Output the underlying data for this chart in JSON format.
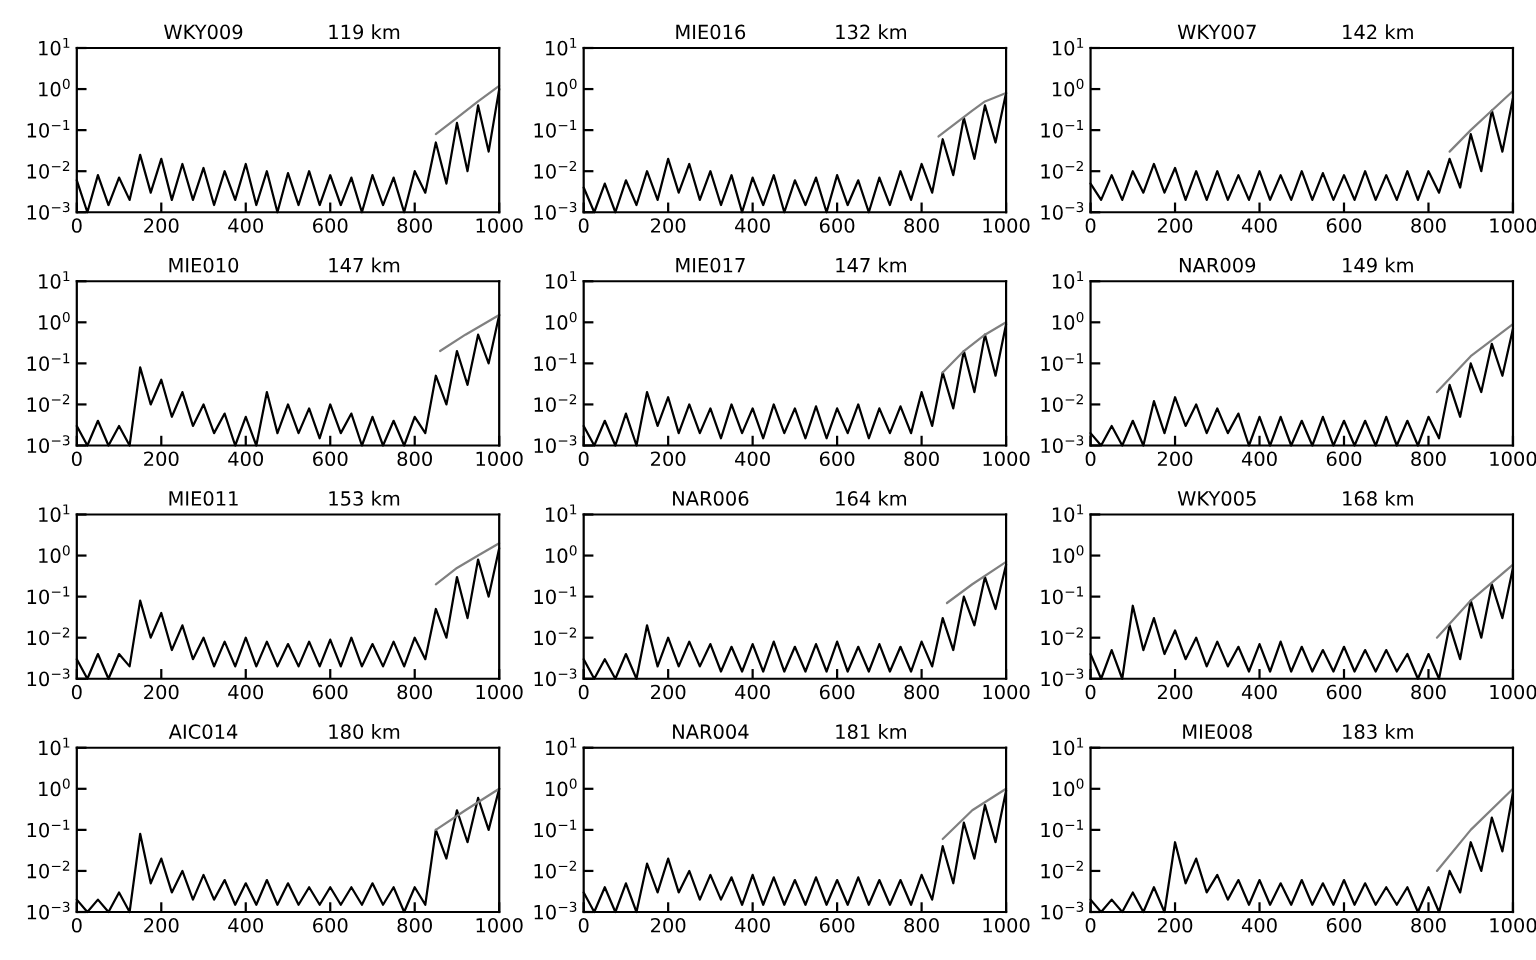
{
  "chart_data": [
    {
      "type": "line",
      "title": "WKY009",
      "subtitle": "119 km",
      "log": "y",
      "xlim": [
        0,
        1000
      ],
      "xticks": [
        0,
        200,
        400,
        600,
        800,
        1000
      ],
      "ylim": [
        0.001,
        10
      ],
      "yticks": [
        {
          "value": 0.001,
          "label": "10$^{−3}$"
        },
        {
          "value": 0.01,
          "label": "10$^{−2}$"
        },
        {
          "value": 0.1,
          "label": "10$^{−1}$"
        },
        {
          "value": 1,
          "label": "10$^{0}$"
        },
        {
          "value": 10,
          "label": "10$^{1}$"
        }
      ],
      "series": [
        {
          "color": "#000000",
          "x": [
            0,
            25,
            50,
            75,
            100,
            125,
            150,
            175,
            200,
            225,
            250,
            275,
            300,
            325,
            350,
            375,
            400,
            425,
            450,
            475,
            500,
            525,
            550,
            575,
            600,
            625,
            650,
            675,
            700,
            725,
            750,
            775,
            800,
            825,
            850,
            875,
            900,
            925,
            950,
            975,
            1000
          ],
          "values": [
            0.006,
            0.001,
            0.008,
            0.0015,
            0.007,
            0.002,
            0.025,
            0.003,
            0.02,
            0.002,
            0.015,
            0.002,
            0.012,
            0.0015,
            0.01,
            0.002,
            0.015,
            0.0015,
            0.01,
            0.001,
            0.009,
            0.0015,
            0.01,
            0.0015,
            0.008,
            0.0015,
            0.007,
            0.001,
            0.008,
            0.0015,
            0.007,
            0.001,
            0.01,
            0.003,
            0.05,
            0.005,
            0.15,
            0.01,
            0.4,
            0.03,
            1.0
          ]
        },
        {
          "color": "#808080",
          "x": [
            850,
            900,
            950,
            1000
          ],
          "values": [
            0.08,
            0.2,
            0.5,
            1.2
          ]
        }
      ]
    },
    {
      "type": "line",
      "title": "MIE016",
      "subtitle": "132 km",
      "log": "y",
      "xlim": [
        0,
        1000
      ],
      "xticks": [
        0,
        200,
        400,
        600,
        800,
        1000
      ],
      "ylim": [
        0.001,
        10
      ],
      "yticks": [
        {
          "value": 0.001,
          "label": "10$^{−3}$"
        },
        {
          "value": 0.01,
          "label": "10$^{−2}$"
        },
        {
          "value": 0.1,
          "label": "10$^{−1}$"
        },
        {
          "value": 1,
          "label": "10$^{0}$"
        },
        {
          "value": 10,
          "label": "10$^{1}$"
        }
      ],
      "series": [
        {
          "color": "#000000",
          "x": [
            0,
            25,
            50,
            75,
            100,
            125,
            150,
            175,
            200,
            225,
            250,
            275,
            300,
            325,
            350,
            375,
            400,
            425,
            450,
            475,
            500,
            525,
            550,
            575,
            600,
            625,
            650,
            675,
            700,
            725,
            750,
            775,
            800,
            825,
            850,
            875,
            900,
            925,
            950,
            975,
            1000
          ],
          "values": [
            0.004,
            0.001,
            0.005,
            0.001,
            0.006,
            0.0015,
            0.01,
            0.002,
            0.02,
            0.003,
            0.015,
            0.002,
            0.01,
            0.0015,
            0.008,
            0.001,
            0.007,
            0.0015,
            0.008,
            0.001,
            0.006,
            0.0015,
            0.007,
            0.001,
            0.008,
            0.0015,
            0.006,
            0.001,
            0.007,
            0.0015,
            0.01,
            0.002,
            0.015,
            0.003,
            0.06,
            0.008,
            0.2,
            0.02,
            0.4,
            0.05,
            0.8
          ]
        },
        {
          "color": "#808080",
          "x": [
            840,
            920,
            950,
            1000
          ],
          "values": [
            0.07,
            0.3,
            0.5,
            0.8
          ]
        }
      ]
    },
    {
      "type": "line",
      "title": "WKY007",
      "subtitle": "142 km",
      "log": "y",
      "xlim": [
        0,
        1000
      ],
      "xticks": [
        0,
        200,
        400,
        600,
        800,
        1000
      ],
      "ylim": [
        0.001,
        10
      ],
      "yticks": [
        {
          "value": 0.001,
          "label": "10$^{−3}$"
        },
        {
          "value": 0.01,
          "label": "10$^{−2}$"
        },
        {
          "value": 0.1,
          "label": "10$^{−1}$"
        },
        {
          "value": 1,
          "label": "10$^{0}$"
        },
        {
          "value": 10,
          "label": "10$^{1}$"
        }
      ],
      "series": [
        {
          "color": "#000000",
          "x": [
            0,
            25,
            50,
            75,
            100,
            125,
            150,
            175,
            200,
            225,
            250,
            275,
            300,
            325,
            350,
            375,
            400,
            425,
            450,
            475,
            500,
            525,
            550,
            575,
            600,
            625,
            650,
            675,
            700,
            725,
            750,
            775,
            800,
            825,
            850,
            875,
            900,
            925,
            950,
            975,
            1000
          ],
          "values": [
            0.005,
            0.002,
            0.008,
            0.002,
            0.01,
            0.003,
            0.015,
            0.003,
            0.012,
            0.002,
            0.01,
            0.002,
            0.01,
            0.002,
            0.008,
            0.002,
            0.01,
            0.002,
            0.008,
            0.002,
            0.01,
            0.002,
            0.009,
            0.002,
            0.008,
            0.002,
            0.01,
            0.002,
            0.008,
            0.002,
            0.01,
            0.002,
            0.01,
            0.003,
            0.02,
            0.004,
            0.08,
            0.01,
            0.3,
            0.03,
            0.6
          ]
        },
        {
          "color": "#808080",
          "x": [
            850,
            900,
            950,
            1000
          ],
          "values": [
            0.03,
            0.1,
            0.3,
            0.9
          ]
        }
      ]
    },
    {
      "type": "line",
      "title": "MIE010",
      "subtitle": "147 km",
      "log": "y",
      "xlim": [
        0,
        1000
      ],
      "xticks": [
        0,
        200,
        400,
        600,
        800,
        1000
      ],
      "ylim": [
        0.001,
        10
      ],
      "yticks": [
        {
          "value": 0.001,
          "label": "10$^{−3}$"
        },
        {
          "value": 0.01,
          "label": "10$^{−2}$"
        },
        {
          "value": 0.1,
          "label": "10$^{−1}$"
        },
        {
          "value": 1,
          "label": "10$^{0}$"
        },
        {
          "value": 10,
          "label": "10$^{1}$"
        }
      ],
      "series": [
        {
          "color": "#000000",
          "x": [
            0,
            25,
            50,
            75,
            100,
            125,
            150,
            175,
            200,
            225,
            250,
            275,
            300,
            325,
            350,
            375,
            400,
            425,
            450,
            475,
            500,
            525,
            550,
            575,
            600,
            625,
            650,
            675,
            700,
            725,
            750,
            775,
            800,
            825,
            850,
            875,
            900,
            925,
            950,
            975,
            1000
          ],
          "values": [
            0.003,
            0.001,
            0.004,
            0.001,
            0.003,
            0.001,
            0.08,
            0.01,
            0.04,
            0.005,
            0.02,
            0.003,
            0.01,
            0.002,
            0.006,
            0.001,
            0.005,
            0.001,
            0.02,
            0.002,
            0.01,
            0.002,
            0.008,
            0.0015,
            0.01,
            0.002,
            0.006,
            0.001,
            0.005,
            0.001,
            0.004,
            0.001,
            0.005,
            0.002,
            0.05,
            0.01,
            0.2,
            0.03,
            0.5,
            0.1,
            1.5
          ]
        },
        {
          "color": "#808080",
          "x": [
            860,
            920,
            1000
          ],
          "values": [
            0.2,
            0.5,
            1.5
          ]
        }
      ]
    },
    {
      "type": "line",
      "title": "MIE017",
      "subtitle": "147 km",
      "log": "y",
      "xlim": [
        0,
        1000
      ],
      "xticks": [
        0,
        200,
        400,
        600,
        800,
        1000
      ],
      "ylim": [
        0.001,
        10
      ],
      "yticks": [
        {
          "value": 0.001,
          "label": "10$^{−3}$"
        },
        {
          "value": 0.01,
          "label": "10$^{−2}$"
        },
        {
          "value": 0.1,
          "label": "10$^{−1}$"
        },
        {
          "value": 1,
          "label": "10$^{0}$"
        },
        {
          "value": 10,
          "label": "10$^{1}$"
        }
      ],
      "series": [
        {
          "color": "#000000",
          "x": [
            0,
            25,
            50,
            75,
            100,
            125,
            150,
            175,
            200,
            225,
            250,
            275,
            300,
            325,
            350,
            375,
            400,
            425,
            450,
            475,
            500,
            525,
            550,
            575,
            600,
            625,
            650,
            675,
            700,
            725,
            750,
            775,
            800,
            825,
            850,
            875,
            900,
            925,
            950,
            975,
            1000
          ],
          "values": [
            0.003,
            0.001,
            0.004,
            0.001,
            0.006,
            0.001,
            0.02,
            0.003,
            0.015,
            0.002,
            0.01,
            0.002,
            0.008,
            0.0015,
            0.01,
            0.002,
            0.008,
            0.0015,
            0.01,
            0.002,
            0.008,
            0.0015,
            0.009,
            0.0015,
            0.008,
            0.002,
            0.01,
            0.0015,
            0.008,
            0.002,
            0.009,
            0.002,
            0.02,
            0.003,
            0.06,
            0.008,
            0.2,
            0.02,
            0.5,
            0.05,
            0.9
          ]
        },
        {
          "color": "#808080",
          "x": [
            850,
            900,
            950,
            1000
          ],
          "values": [
            0.06,
            0.2,
            0.5,
            1.0
          ]
        }
      ]
    },
    {
      "type": "line",
      "title": "NAR009",
      "subtitle": "149 km",
      "log": "y",
      "xlim": [
        0,
        1000
      ],
      "xticks": [
        0,
        200,
        400,
        600,
        800,
        1000
      ],
      "ylim": [
        0.001,
        10
      ],
      "yticks": [
        {
          "value": 0.001,
          "label": "10$^{−3}$"
        },
        {
          "value": 0.01,
          "label": "10$^{−2}$"
        },
        {
          "value": 0.1,
          "label": "10$^{−1}$"
        },
        {
          "value": 1,
          "label": "10$^{0}$"
        },
        {
          "value": 10,
          "label": "10$^{1}$"
        }
      ],
      "series": [
        {
          "color": "#000000",
          "x": [
            0,
            25,
            50,
            75,
            100,
            125,
            150,
            175,
            200,
            225,
            250,
            275,
            300,
            325,
            350,
            375,
            400,
            425,
            450,
            475,
            500,
            525,
            550,
            575,
            600,
            625,
            650,
            675,
            700,
            725,
            750,
            775,
            800,
            825,
            850,
            875,
            900,
            925,
            950,
            975,
            1000
          ],
          "values": [
            0.002,
            0.001,
            0.003,
            0.001,
            0.004,
            0.001,
            0.012,
            0.002,
            0.015,
            0.003,
            0.01,
            0.002,
            0.008,
            0.002,
            0.006,
            0.001,
            0.005,
            0.001,
            0.005,
            0.001,
            0.004,
            0.001,
            0.005,
            0.001,
            0.004,
            0.001,
            0.004,
            0.001,
            0.005,
            0.001,
            0.004,
            0.001,
            0.005,
            0.0015,
            0.03,
            0.005,
            0.1,
            0.02,
            0.3,
            0.05,
            0.7
          ]
        },
        {
          "color": "#808080",
          "x": [
            820,
            900,
            1000
          ],
          "values": [
            0.02,
            0.15,
            0.9
          ]
        }
      ]
    },
    {
      "type": "line",
      "title": "MIE011",
      "subtitle": "153 km",
      "log": "y",
      "xlim": [
        0,
        1000
      ],
      "xticks": [
        0,
        200,
        400,
        600,
        800,
        1000
      ],
      "ylim": [
        0.001,
        10
      ],
      "yticks": [
        {
          "value": 0.001,
          "label": "10$^{−3}$"
        },
        {
          "value": 0.01,
          "label": "10$^{−2}$"
        },
        {
          "value": 0.1,
          "label": "10$^{−1}$"
        },
        {
          "value": 1,
          "label": "10$^{0}$"
        },
        {
          "value": 10,
          "label": "10$^{1}$"
        }
      ],
      "series": [
        {
          "color": "#000000",
          "x": [
            0,
            25,
            50,
            75,
            100,
            125,
            150,
            175,
            200,
            225,
            250,
            275,
            300,
            325,
            350,
            375,
            400,
            425,
            450,
            475,
            500,
            525,
            550,
            575,
            600,
            625,
            650,
            675,
            700,
            725,
            750,
            775,
            800,
            825,
            850,
            875,
            900,
            925,
            950,
            975,
            1000
          ],
          "values": [
            0.003,
            0.001,
            0.004,
            0.001,
            0.004,
            0.002,
            0.08,
            0.01,
            0.04,
            0.005,
            0.02,
            0.003,
            0.01,
            0.002,
            0.008,
            0.002,
            0.01,
            0.002,
            0.008,
            0.002,
            0.007,
            0.002,
            0.008,
            0.002,
            0.009,
            0.002,
            0.01,
            0.002,
            0.007,
            0.002,
            0.008,
            0.002,
            0.01,
            0.003,
            0.05,
            0.01,
            0.3,
            0.03,
            0.8,
            0.1,
            1.5
          ]
        },
        {
          "color": "#808080",
          "x": [
            850,
            900,
            950,
            1000
          ],
          "values": [
            0.2,
            0.5,
            1.0,
            2.0
          ]
        }
      ]
    },
    {
      "type": "line",
      "title": "NAR006",
      "subtitle": "164 km",
      "log": "y",
      "xlim": [
        0,
        1000
      ],
      "xticks": [
        0,
        200,
        400,
        600,
        800,
        1000
      ],
      "ylim": [
        0.001,
        10
      ],
      "yticks": [
        {
          "value": 0.001,
          "label": "10$^{−3}$"
        },
        {
          "value": 0.01,
          "label": "10$^{−2}$"
        },
        {
          "value": 0.1,
          "label": "10$^{−1}$"
        },
        {
          "value": 1,
          "label": "10$^{0}$"
        },
        {
          "value": 10,
          "label": "10$^{1}$"
        }
      ],
      "series": [
        {
          "color": "#000000",
          "x": [
            0,
            25,
            50,
            75,
            100,
            125,
            150,
            175,
            200,
            225,
            250,
            275,
            300,
            325,
            350,
            375,
            400,
            425,
            450,
            475,
            500,
            525,
            550,
            575,
            600,
            625,
            650,
            675,
            700,
            725,
            750,
            775,
            800,
            825,
            850,
            875,
            900,
            925,
            950,
            975,
            1000
          ],
          "values": [
            0.003,
            0.001,
            0.003,
            0.001,
            0.004,
            0.001,
            0.02,
            0.002,
            0.01,
            0.002,
            0.008,
            0.002,
            0.007,
            0.0015,
            0.006,
            0.0015,
            0.007,
            0.0015,
            0.008,
            0.0015,
            0.006,
            0.0015,
            0.007,
            0.0015,
            0.008,
            0.0015,
            0.006,
            0.0015,
            0.007,
            0.0015,
            0.006,
            0.0015,
            0.008,
            0.002,
            0.03,
            0.005,
            0.1,
            0.02,
            0.3,
            0.05,
            0.6
          ]
        },
        {
          "color": "#808080",
          "x": [
            860,
            920,
            1000
          ],
          "values": [
            0.07,
            0.2,
            0.7
          ]
        }
      ]
    },
    {
      "type": "line",
      "title": "WKY005",
      "subtitle": "168 km",
      "log": "y",
      "xlim": [
        0,
        1000
      ],
      "xticks": [
        0,
        200,
        400,
        600,
        800,
        1000
      ],
      "ylim": [
        0.001,
        10
      ],
      "yticks": [
        {
          "value": 0.001,
          "label": "10$^{−3}$"
        },
        {
          "value": 0.01,
          "label": "10$^{−2}$"
        },
        {
          "value": 0.1,
          "label": "10$^{−1}$"
        },
        {
          "value": 1,
          "label": "10$^{0}$"
        },
        {
          "value": 10,
          "label": "10$^{1}$"
        }
      ],
      "series": [
        {
          "color": "#000000",
          "x": [
            0,
            25,
            50,
            75,
            100,
            125,
            150,
            175,
            200,
            225,
            250,
            275,
            300,
            325,
            350,
            375,
            400,
            425,
            450,
            475,
            500,
            525,
            550,
            575,
            600,
            625,
            650,
            675,
            700,
            725,
            750,
            775,
            800,
            825,
            850,
            875,
            900,
            925,
            950,
            975,
            1000
          ],
          "values": [
            0.004,
            0.001,
            0.005,
            0.001,
            0.06,
            0.005,
            0.03,
            0.004,
            0.015,
            0.003,
            0.01,
            0.002,
            0.008,
            0.002,
            0.006,
            0.0015,
            0.007,
            0.0015,
            0.008,
            0.0015,
            0.006,
            0.0015,
            0.005,
            0.0015,
            0.006,
            0.0015,
            0.005,
            0.0015,
            0.005,
            0.0015,
            0.004,
            0.001,
            0.004,
            0.001,
            0.02,
            0.003,
            0.08,
            0.01,
            0.2,
            0.03,
            0.5
          ]
        },
        {
          "color": "#808080",
          "x": [
            820,
            900,
            1000
          ],
          "values": [
            0.01,
            0.08,
            0.6
          ]
        }
      ]
    },
    {
      "type": "line",
      "title": "AIC014",
      "subtitle": "180 km",
      "log": "y",
      "xlim": [
        0,
        1000
      ],
      "xticks": [
        0,
        200,
        400,
        600,
        800,
        1000
      ],
      "ylim": [
        0.001,
        10
      ],
      "yticks": [
        {
          "value": 0.001,
          "label": "10$^{−3}$"
        },
        {
          "value": 0.01,
          "label": "10$^{−2}$"
        },
        {
          "value": 0.1,
          "label": "10$^{−1}$"
        },
        {
          "value": 1,
          "label": "10$^{0}$"
        },
        {
          "value": 10,
          "label": "10$^{1}$"
        }
      ],
      "series": [
        {
          "color": "#000000",
          "x": [
            0,
            25,
            50,
            75,
            100,
            125,
            150,
            175,
            200,
            225,
            250,
            275,
            300,
            325,
            350,
            375,
            400,
            425,
            450,
            475,
            500,
            525,
            550,
            575,
            600,
            625,
            650,
            675,
            700,
            725,
            750,
            775,
            800,
            825,
            850,
            875,
            900,
            925,
            950,
            975,
            1000
          ],
          "values": [
            0.002,
            0.001,
            0.002,
            0.001,
            0.003,
            0.001,
            0.08,
            0.005,
            0.02,
            0.003,
            0.01,
            0.002,
            0.008,
            0.002,
            0.006,
            0.0015,
            0.005,
            0.0015,
            0.006,
            0.0015,
            0.005,
            0.0015,
            0.004,
            0.0015,
            0.004,
            0.0015,
            0.004,
            0.0015,
            0.005,
            0.0015,
            0.004,
            0.001,
            0.004,
            0.0015,
            0.1,
            0.02,
            0.3,
            0.05,
            0.6,
            0.1,
            1.0
          ]
        },
        {
          "color": "#808080",
          "x": [
            850,
            920,
            1000
          ],
          "values": [
            0.1,
            0.3,
            1.0
          ]
        }
      ]
    },
    {
      "type": "line",
      "title": "NAR004",
      "subtitle": "181 km",
      "log": "y",
      "xlim": [
        0,
        1000
      ],
      "xticks": [
        0,
        200,
        400,
        600,
        800,
        1000
      ],
      "ylim": [
        0.001,
        10
      ],
      "yticks": [
        {
          "value": 0.001,
          "label": "10$^{−3}$"
        },
        {
          "value": 0.01,
          "label": "10$^{−2}$"
        },
        {
          "value": 0.1,
          "label": "10$^{−1}$"
        },
        {
          "value": 1,
          "label": "10$^{0}$"
        },
        {
          "value": 10,
          "label": "10$^{1}$"
        }
      ],
      "series": [
        {
          "color": "#000000",
          "x": [
            0,
            25,
            50,
            75,
            100,
            125,
            150,
            175,
            200,
            225,
            250,
            275,
            300,
            325,
            350,
            375,
            400,
            425,
            450,
            475,
            500,
            525,
            550,
            575,
            600,
            625,
            650,
            675,
            700,
            725,
            750,
            775,
            800,
            825,
            850,
            875,
            900,
            925,
            950,
            975,
            1000
          ],
          "values": [
            0.003,
            0.001,
            0.004,
            0.001,
            0.005,
            0.001,
            0.015,
            0.003,
            0.02,
            0.003,
            0.01,
            0.002,
            0.008,
            0.002,
            0.007,
            0.0015,
            0.008,
            0.0015,
            0.007,
            0.0015,
            0.006,
            0.0015,
            0.007,
            0.0015,
            0.006,
            0.0015,
            0.007,
            0.0015,
            0.006,
            0.0015,
            0.006,
            0.0015,
            0.008,
            0.002,
            0.04,
            0.005,
            0.15,
            0.02,
            0.4,
            0.05,
            0.9
          ]
        },
        {
          "color": "#808080",
          "x": [
            850,
            920,
            1000
          ],
          "values": [
            0.06,
            0.3,
            1.0
          ]
        }
      ]
    },
    {
      "type": "line",
      "title": "MIE008",
      "subtitle": "183 km",
      "log": "y",
      "xlim": [
        0,
        1000
      ],
      "xticks": [
        0,
        200,
        400,
        600,
        800,
        1000
      ],
      "ylim": [
        0.001,
        10
      ],
      "yticks": [
        {
          "value": 0.001,
          "label": "10$^{−3}$"
        },
        {
          "value": 0.01,
          "label": "10$^{−2}$"
        },
        {
          "value": 0.1,
          "label": "10$^{−1}$"
        },
        {
          "value": 1,
          "label": "10$^{0}$"
        },
        {
          "value": 10,
          "label": "10$^{1}$"
        }
      ],
      "series": [
        {
          "color": "#000000",
          "x": [
            0,
            25,
            50,
            75,
            100,
            125,
            150,
            175,
            200,
            225,
            250,
            275,
            300,
            325,
            350,
            375,
            400,
            425,
            450,
            475,
            500,
            525,
            550,
            575,
            600,
            625,
            650,
            675,
            700,
            725,
            750,
            775,
            800,
            825,
            850,
            875,
            900,
            925,
            950,
            975,
            1000
          ],
          "values": [
            0.002,
            0.001,
            0.002,
            0.001,
            0.003,
            0.001,
            0.004,
            0.001,
            0.05,
            0.005,
            0.02,
            0.003,
            0.008,
            0.002,
            0.006,
            0.0015,
            0.006,
            0.0015,
            0.005,
            0.0015,
            0.006,
            0.0015,
            0.005,
            0.0015,
            0.006,
            0.0015,
            0.005,
            0.0015,
            0.004,
            0.0015,
            0.004,
            0.001,
            0.004,
            0.001,
            0.01,
            0.003,
            0.05,
            0.01,
            0.2,
            0.03,
            0.8
          ]
        },
        {
          "color": "#808080",
          "x": [
            820,
            900,
            1000
          ],
          "values": [
            0.01,
            0.1,
            1.0
          ]
        }
      ]
    }
  ]
}
